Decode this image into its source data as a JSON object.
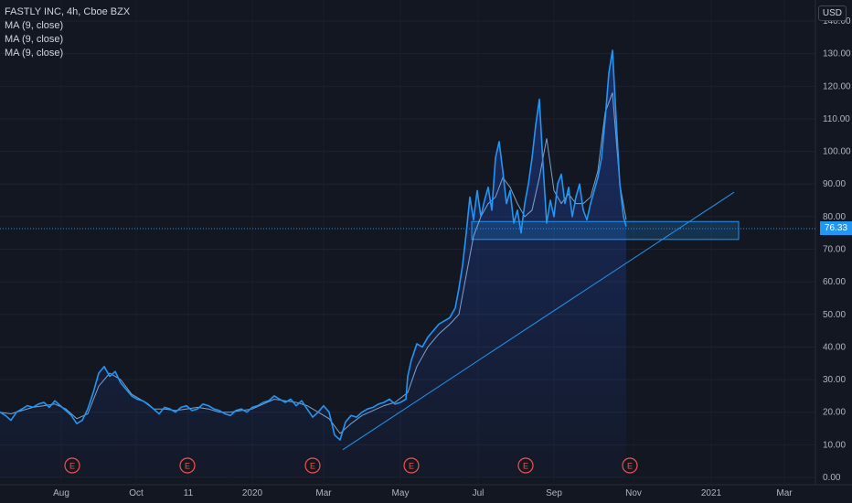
{
  "chart_data": {
    "type": "line",
    "title": "FASTLY INC, 4h, Cboe BZX",
    "legend": [
      "MA (9, close)",
      "MA (9, close)",
      "MA (9, close)"
    ],
    "currency": "USD",
    "last_price": "76.33",
    "ylim": [
      0,
      140
    ],
    "y_ticks": [
      "0.00",
      "10.00",
      "20.00",
      "30.00",
      "40.00",
      "50.00",
      "60.00",
      "70.00",
      "80.00",
      "90.00",
      "100.00",
      "110.00",
      "120.00",
      "130.00",
      "140.00"
    ],
    "x_ticks": [
      "Aug",
      "Oct",
      "11",
      "2020",
      "Mar",
      "May",
      "Jul",
      "Sep",
      "Nov",
      "2021",
      "Mar"
    ],
    "earnings_marker": "E",
    "earnings_dates": [
      "Aug",
      "Nov",
      "Feb",
      "May",
      "Aug",
      "Oct"
    ],
    "series": [
      {
        "name": "Price",
        "x": [
          0,
          6,
          12,
          18,
          24,
          30,
          36,
          42,
          48,
          54,
          60,
          66,
          72,
          78,
          84,
          90,
          96,
          102,
          108,
          114,
          120,
          126,
          132,
          138,
          144,
          150,
          156,
          162,
          168,
          174,
          180,
          186,
          192,
          198,
          204,
          210,
          216,
          222,
          228,
          234,
          240,
          246,
          252,
          258,
          264,
          270,
          276,
          282,
          288,
          294,
          300,
          306,
          312,
          318,
          324,
          330,
          336,
          342,
          348,
          354,
          360,
          366,
          372,
          378,
          384,
          390,
          396,
          402,
          408,
          414,
          420,
          426,
          432,
          438,
          444,
          446,
          450,
          456,
          462,
          468,
          474,
          480,
          486,
          492,
          498,
          502,
          506,
          510,
          514,
          518,
          522,
          526,
          530,
          534,
          538,
          542,
          546,
          550,
          554,
          558,
          562,
          566,
          570,
          574,
          578,
          582,
          586,
          590,
          594,
          598,
          602,
          606,
          610,
          614,
          618,
          622,
          626,
          630,
          634,
          638,
          642,
          646,
          650,
          654,
          658,
          662,
          666,
          670,
          674,
          678,
          682,
          685
        ],
        "values": [
          20.0,
          19.0,
          17.5,
          20.0,
          21.0,
          22.0,
          21.5,
          22.5,
          23.0,
          21.5,
          23.5,
          22.0,
          20.5,
          19.0,
          16.5,
          17.5,
          21.0,
          26.0,
          32.0,
          34.0,
          31.0,
          32.5,
          29.0,
          27.0,
          25.0,
          24.0,
          23.5,
          22.5,
          21.0,
          19.5,
          21.5,
          21.0,
          20.0,
          21.5,
          22.0,
          20.5,
          21.0,
          22.5,
          22.0,
          21.0,
          20.5,
          19.5,
          19.0,
          20.5,
          21.0,
          20.0,
          21.5,
          22.0,
          23.0,
          23.5,
          25.0,
          24.0,
          23.0,
          24.0,
          22.0,
          23.5,
          21.0,
          18.5,
          20.0,
          22.0,
          20.0,
          13.0,
          11.5,
          17.0,
          19.0,
          18.5,
          20.0,
          21.0,
          21.5,
          22.5,
          23.0,
          24.0,
          22.5,
          23.0,
          24.0,
          31.0,
          36.0,
          41.0,
          40.0,
          43.0,
          45.0,
          47.0,
          48.0,
          49.0,
          52.0,
          58.0,
          65.0,
          75.0,
          86.0,
          79.0,
          88.0,
          80.0,
          85.0,
          89.0,
          82.0,
          98.0,
          103.0,
          94.0,
          84.0,
          88.0,
          78.0,
          82.0,
          75.0,
          84.0,
          90.0,
          98.0,
          108.0,
          116.0,
          96.0,
          78.0,
          85.0,
          80.0,
          90.0,
          93.0,
          84.0,
          89.0,
          80.0,
          86.0,
          90.0,
          82.0,
          79.0,
          84.0,
          88.0,
          92.0,
          98.0,
          110.0,
          124.0,
          131.0,
          110.0,
          90.0,
          80.0,
          77.0
        ]
      },
      {
        "name": "MA (9, close)",
        "x": [
          0,
          12,
          24,
          36,
          48,
          60,
          72,
          84,
          96,
          108,
          120,
          132,
          144,
          156,
          168,
          180,
          192,
          204,
          216,
          228,
          240,
          252,
          264,
          276,
          288,
          300,
          312,
          324,
          336,
          348,
          360,
          372,
          384,
          396,
          408,
          420,
          432,
          446,
          456,
          468,
          480,
          492,
          502,
          510,
          518,
          526,
          534,
          542,
          550,
          558,
          566,
          574,
          582,
          590,
          598,
          606,
          614,
          622,
          630,
          638,
          646,
          654,
          662,
          670,
          678,
          685
        ],
        "values": [
          20.0,
          19.5,
          20.5,
          21.5,
          22.0,
          22.5,
          21.0,
          18.0,
          19.5,
          28.0,
          32.0,
          30.0,
          25.5,
          23.5,
          21.0,
          21.0,
          20.5,
          21.0,
          21.5,
          21.0,
          20.0,
          20.0,
          20.5,
          21.0,
          22.5,
          24.0,
          23.5,
          23.0,
          22.0,
          20.0,
          18.0,
          13.5,
          16.5,
          19.0,
          20.5,
          22.0,
          23.0,
          26.0,
          34.0,
          40.0,
          44.0,
          47.0,
          50.0,
          62.0,
          74.0,
          80.0,
          84.0,
          86.0,
          92.0,
          89.0,
          84.0,
          80.0,
          82.0,
          92.0,
          104.0,
          88.0,
          84.0,
          87.0,
          84.0,
          84.0,
          86.0,
          94.0,
          112.0,
          118.0,
          90.0,
          79.0
        ]
      }
    ],
    "annotations": [
      {
        "type": "trendline",
        "from": {
          "x": 375,
          "y": 8.5
        },
        "to": {
          "x": 803,
          "y": 87.5
        }
      },
      {
        "type": "zone",
        "x0": 516,
        "x1": 808,
        "y0": 73.0,
        "y1": 78.5
      },
      {
        "type": "hline",
        "y": 76.33
      }
    ]
  }
}
